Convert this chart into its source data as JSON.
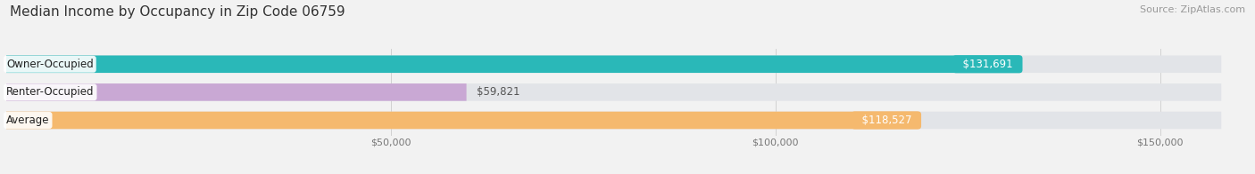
{
  "title": "Median Income by Occupancy in Zip Code 06759",
  "source": "Source: ZipAtlas.com",
  "categories": [
    "Owner-Occupied",
    "Renter-Occupied",
    "Average"
  ],
  "values": [
    131691,
    59821,
    118527
  ],
  "bar_colors": [
    "#2ab8b8",
    "#c9a8d4",
    "#f5b96e"
  ],
  "label_texts": [
    "$131,691",
    "$59,821",
    "$118,527"
  ],
  "x_tick_labels": [
    "$50,000",
    "$100,000",
    "$150,000"
  ],
  "x_ticks": [
    50000,
    100000,
    150000
  ],
  "xlim": [
    0,
    162000
  ],
  "bar_height": 0.62,
  "background_color": "#f2f2f2",
  "bar_bg_color": "#e2e4e8",
  "title_fontsize": 11,
  "source_fontsize": 8,
  "label_fontsize": 8.5,
  "category_fontsize": 8.5,
  "tick_fontsize": 8
}
